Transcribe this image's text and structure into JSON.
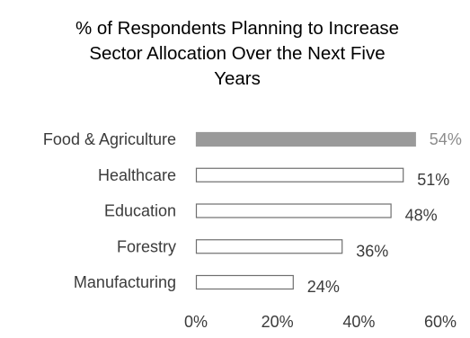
{
  "chart_data": {
    "type": "bar",
    "orientation": "horizontal",
    "title_lines": [
      "% of Respondents Planning to Increase",
      "Sector Allocation Over the Next Five",
      "Years"
    ],
    "categories": [
      "Food & Agriculture",
      "Healthcare",
      "Education",
      "Forestry",
      "Manufacturing"
    ],
    "values": [
      54,
      51,
      48,
      36,
      24
    ],
    "value_labels": [
      "54%",
      "51%",
      "48%",
      "36%",
      "24%"
    ],
    "highlight_index": 0,
    "xlim": [
      0,
      60
    ],
    "ticks": [
      0,
      20,
      40,
      60
    ],
    "tick_labels": [
      "0%",
      "20%",
      "40%",
      "60%"
    ],
    "xlabel": "",
    "ylabel": "",
    "grid": false,
    "legend": false,
    "colors": {
      "highlight_fill": "#9a9a9a",
      "bar_fill": "#ffffff",
      "bar_stroke": "#6f6f6f",
      "text": "#3b3b3b",
      "highlight_text": "#8c8c8c"
    }
  }
}
